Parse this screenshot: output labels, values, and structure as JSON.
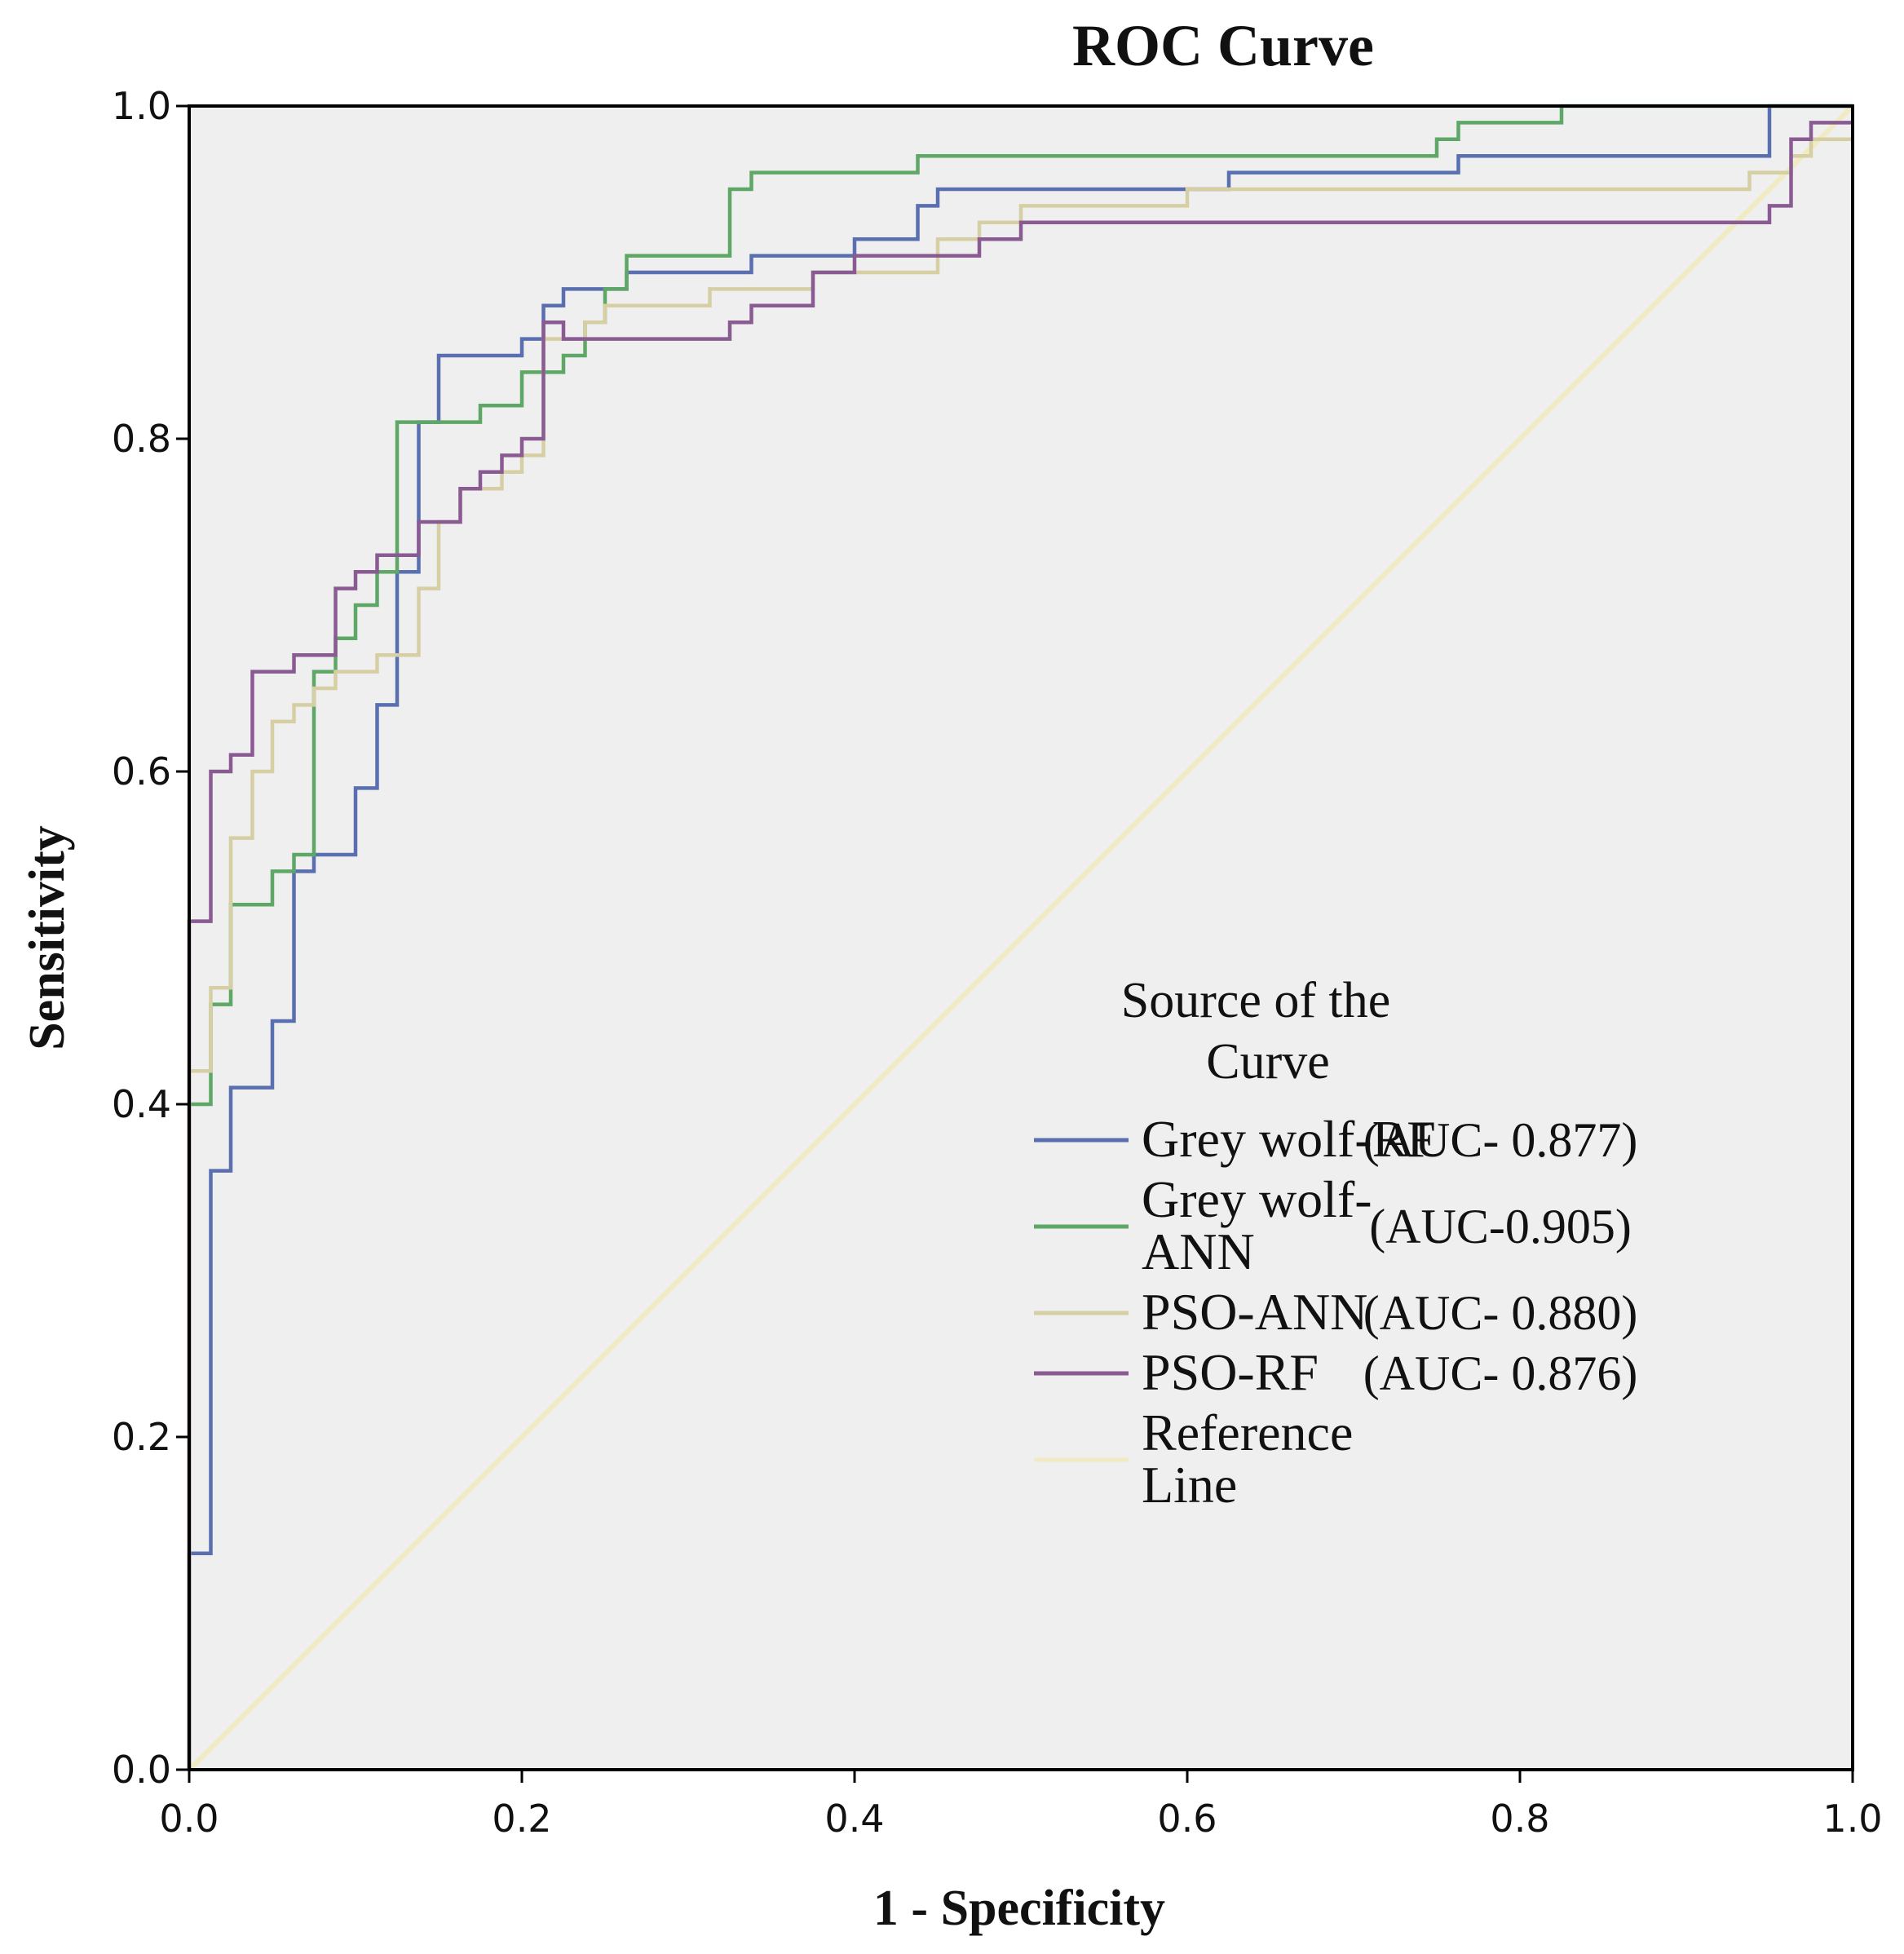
{
  "chart_data": {
    "type": "line",
    "title": "ROC Curve",
    "xlabel": "1 - Specificity",
    "ylabel": "Sensitivity",
    "xlim": [
      0,
      1
    ],
    "ylim": [
      0,
      1
    ],
    "x_ticks": [
      "0.0",
      "0.2",
      "0.4",
      "0.6",
      "0.8",
      "1.0"
    ],
    "y_ticks": [
      "0.0",
      "0.2",
      "0.4",
      "0.6",
      "0.8",
      "1.0"
    ],
    "background_color": "#efefef",
    "legend": {
      "title_line1": "Source of the",
      "title_line2": "Curve",
      "position": "bottom-right"
    },
    "series": [
      {
        "name": "Grey wolf-RF",
        "label_lines": [
          "Grey wolf-RF"
        ],
        "auc_label": "(AUC- 0.877)",
        "color": "#5a6fb0",
        "points": [
          [
            0,
            0
          ],
          [
            0,
            0.13
          ],
          [
            0.013,
            0.13
          ],
          [
            0.013,
            0.36
          ],
          [
            0.025,
            0.36
          ],
          [
            0.025,
            0.41
          ],
          [
            0.05,
            0.41
          ],
          [
            0.05,
            0.45
          ],
          [
            0.063,
            0.45
          ],
          [
            0.063,
            0.54
          ],
          [
            0.075,
            0.54
          ],
          [
            0.075,
            0.55
          ],
          [
            0.1,
            0.55
          ],
          [
            0.1,
            0.59
          ],
          [
            0.113,
            0.59
          ],
          [
            0.113,
            0.64
          ],
          [
            0.125,
            0.64
          ],
          [
            0.125,
            0.72
          ],
          [
            0.138,
            0.72
          ],
          [
            0.138,
            0.81
          ],
          [
            0.15,
            0.81
          ],
          [
            0.15,
            0.85
          ],
          [
            0.2,
            0.85
          ],
          [
            0.2,
            0.86
          ],
          [
            0.213,
            0.86
          ],
          [
            0.213,
            0.88
          ],
          [
            0.225,
            0.88
          ],
          [
            0.225,
            0.89
          ],
          [
            0.263,
            0.89
          ],
          [
            0.263,
            0.9
          ],
          [
            0.338,
            0.9
          ],
          [
            0.338,
            0.91
          ],
          [
            0.4,
            0.91
          ],
          [
            0.4,
            0.92
          ],
          [
            0.438,
            0.92
          ],
          [
            0.438,
            0.94
          ],
          [
            0.45,
            0.94
          ],
          [
            0.45,
            0.95
          ],
          [
            0.625,
            0.95
          ],
          [
            0.625,
            0.96
          ],
          [
            0.763,
            0.96
          ],
          [
            0.763,
            0.97
          ],
          [
            0.95,
            0.97
          ],
          [
            0.95,
            1.0
          ],
          [
            1.0,
            1.0
          ]
        ]
      },
      {
        "name": "Grey wolf-ANN",
        "label_lines": [
          "Grey wolf-",
          "ANN"
        ],
        "auc_label": "(AUC-0.905)",
        "color": "#5ea766",
        "points": [
          [
            0,
            0
          ],
          [
            0,
            0.4
          ],
          [
            0.013,
            0.4
          ],
          [
            0.013,
            0.46
          ],
          [
            0.025,
            0.46
          ],
          [
            0.025,
            0.52
          ],
          [
            0.05,
            0.52
          ],
          [
            0.05,
            0.54
          ],
          [
            0.063,
            0.54
          ],
          [
            0.063,
            0.55
          ],
          [
            0.075,
            0.55
          ],
          [
            0.075,
            0.66
          ],
          [
            0.088,
            0.66
          ],
          [
            0.088,
            0.68
          ],
          [
            0.1,
            0.68
          ],
          [
            0.1,
            0.7
          ],
          [
            0.113,
            0.7
          ],
          [
            0.113,
            0.72
          ],
          [
            0.125,
            0.72
          ],
          [
            0.125,
            0.81
          ],
          [
            0.175,
            0.81
          ],
          [
            0.175,
            0.82
          ],
          [
            0.2,
            0.82
          ],
          [
            0.2,
            0.84
          ],
          [
            0.225,
            0.84
          ],
          [
            0.225,
            0.85
          ],
          [
            0.238,
            0.85
          ],
          [
            0.238,
            0.87
          ],
          [
            0.25,
            0.87
          ],
          [
            0.25,
            0.89
          ],
          [
            0.263,
            0.89
          ],
          [
            0.263,
            0.91
          ],
          [
            0.325,
            0.91
          ],
          [
            0.325,
            0.95
          ],
          [
            0.338,
            0.95
          ],
          [
            0.338,
            0.96
          ],
          [
            0.438,
            0.96
          ],
          [
            0.438,
            0.97
          ],
          [
            0.75,
            0.97
          ],
          [
            0.75,
            0.98
          ],
          [
            0.763,
            0.98
          ],
          [
            0.763,
            0.99
          ],
          [
            0.825,
            0.99
          ],
          [
            0.825,
            1.0
          ],
          [
            1.0,
            1.0
          ]
        ]
      },
      {
        "name": "PSO-ANN",
        "label_lines": [
          "PSO-ANN"
        ],
        "auc_label": "(AUC- 0.880)",
        "color": "#d6cfa4",
        "points": [
          [
            0,
            0
          ],
          [
            0,
            0.42
          ],
          [
            0.013,
            0.42
          ],
          [
            0.013,
            0.47
          ],
          [
            0.025,
            0.47
          ],
          [
            0.025,
            0.56
          ],
          [
            0.038,
            0.56
          ],
          [
            0.038,
            0.6
          ],
          [
            0.05,
            0.6
          ],
          [
            0.05,
            0.63
          ],
          [
            0.063,
            0.63
          ],
          [
            0.063,
            0.64
          ],
          [
            0.075,
            0.64
          ],
          [
            0.075,
            0.65
          ],
          [
            0.088,
            0.65
          ],
          [
            0.088,
            0.66
          ],
          [
            0.113,
            0.66
          ],
          [
            0.113,
            0.67
          ],
          [
            0.138,
            0.67
          ],
          [
            0.138,
            0.71
          ],
          [
            0.15,
            0.71
          ],
          [
            0.15,
            0.75
          ],
          [
            0.163,
            0.75
          ],
          [
            0.163,
            0.77
          ],
          [
            0.188,
            0.77
          ],
          [
            0.188,
            0.78
          ],
          [
            0.2,
            0.78
          ],
          [
            0.2,
            0.79
          ],
          [
            0.213,
            0.79
          ],
          [
            0.213,
            0.86
          ],
          [
            0.238,
            0.86
          ],
          [
            0.238,
            0.87
          ],
          [
            0.25,
            0.87
          ],
          [
            0.25,
            0.88
          ],
          [
            0.313,
            0.88
          ],
          [
            0.313,
            0.89
          ],
          [
            0.375,
            0.89
          ],
          [
            0.375,
            0.9
          ],
          [
            0.45,
            0.9
          ],
          [
            0.45,
            0.92
          ],
          [
            0.475,
            0.92
          ],
          [
            0.475,
            0.93
          ],
          [
            0.5,
            0.93
          ],
          [
            0.5,
            0.94
          ],
          [
            0.6,
            0.94
          ],
          [
            0.6,
            0.95
          ],
          [
            0.938,
            0.95
          ],
          [
            0.938,
            0.96
          ],
          [
            0.963,
            0.96
          ],
          [
            0.963,
            0.97
          ],
          [
            0.975,
            0.97
          ],
          [
            0.975,
            0.98
          ],
          [
            1.0,
            0.98
          ]
        ]
      },
      {
        "name": "PSO-RF",
        "label_lines": [
          "PSO-RF"
        ],
        "auc_label": "(AUC- 0.876)",
        "color": "#8a5a93",
        "points": [
          [
            0,
            0
          ],
          [
            0,
            0.51
          ],
          [
            0.013,
            0.51
          ],
          [
            0.013,
            0.6
          ],
          [
            0.025,
            0.6
          ],
          [
            0.025,
            0.61
          ],
          [
            0.038,
            0.61
          ],
          [
            0.038,
            0.66
          ],
          [
            0.063,
            0.66
          ],
          [
            0.063,
            0.67
          ],
          [
            0.088,
            0.67
          ],
          [
            0.088,
            0.71
          ],
          [
            0.1,
            0.71
          ],
          [
            0.1,
            0.72
          ],
          [
            0.113,
            0.72
          ],
          [
            0.113,
            0.73
          ],
          [
            0.138,
            0.73
          ],
          [
            0.138,
            0.75
          ],
          [
            0.163,
            0.75
          ],
          [
            0.163,
            0.77
          ],
          [
            0.175,
            0.77
          ],
          [
            0.175,
            0.78
          ],
          [
            0.188,
            0.78
          ],
          [
            0.188,
            0.79
          ],
          [
            0.2,
            0.79
          ],
          [
            0.2,
            0.8
          ],
          [
            0.213,
            0.8
          ],
          [
            0.213,
            0.87
          ],
          [
            0.225,
            0.87
          ],
          [
            0.225,
            0.86
          ],
          [
            0.325,
            0.86
          ],
          [
            0.325,
            0.87
          ],
          [
            0.338,
            0.87
          ],
          [
            0.338,
            0.88
          ],
          [
            0.375,
            0.88
          ],
          [
            0.375,
            0.9
          ],
          [
            0.4,
            0.9
          ],
          [
            0.4,
            0.91
          ],
          [
            0.475,
            0.91
          ],
          [
            0.475,
            0.92
          ],
          [
            0.5,
            0.92
          ],
          [
            0.5,
            0.93
          ],
          [
            0.95,
            0.93
          ],
          [
            0.95,
            0.94
          ],
          [
            0.963,
            0.94
          ],
          [
            0.963,
            0.98
          ],
          [
            0.975,
            0.98
          ],
          [
            0.975,
            0.99
          ],
          [
            1.0,
            0.99
          ]
        ]
      },
      {
        "name": "Reference Line",
        "label_lines": [
          "Reference",
          "Line"
        ],
        "auc_label": "",
        "color": "#f0ebc2",
        "points": [
          [
            0,
            0
          ],
          [
            1,
            1
          ]
        ]
      }
    ]
  }
}
